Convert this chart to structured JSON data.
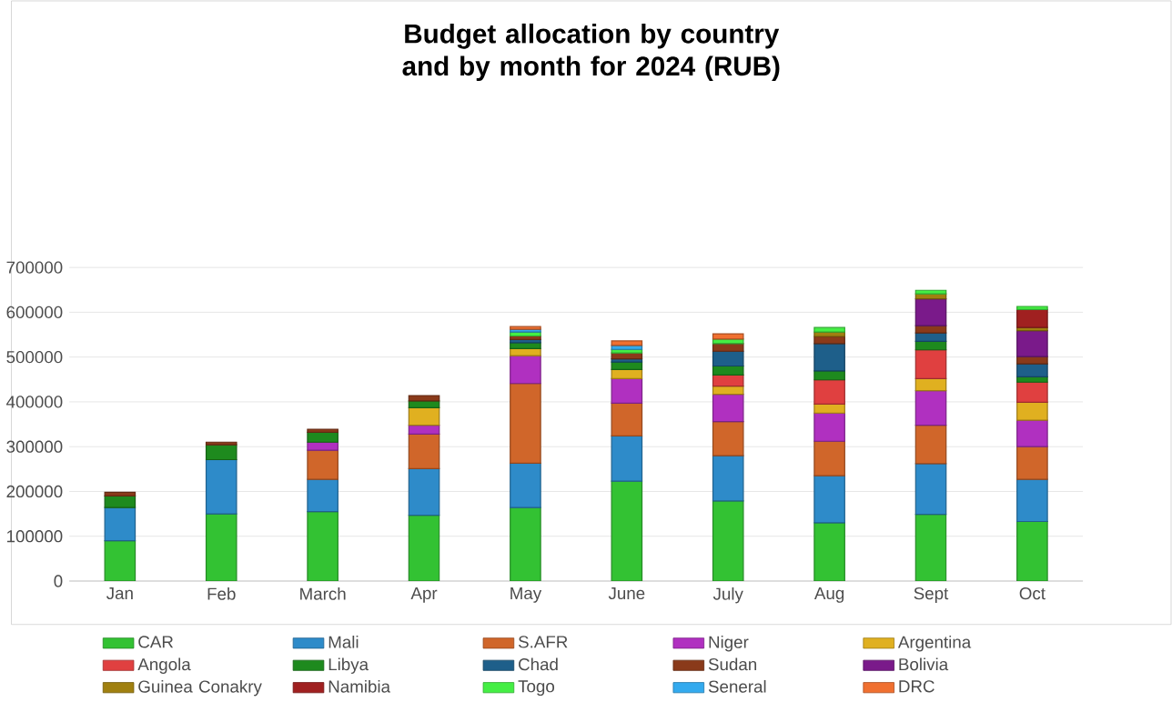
{
  "chart_data": {
    "type": "bar",
    "stacked": true,
    "title": "Budget allocation by country and by month for 2024 (RUB)",
    "categories": [
      "Jan",
      "Feb",
      "March",
      "Apr",
      "May",
      "June",
      "July",
      "Aug",
      "Sept",
      "Oct"
    ],
    "ylim": [
      0,
      700000
    ],
    "yticks": [
      0,
      100000,
      200000,
      300000,
      400000,
      500000,
      600000,
      700000
    ],
    "grid": "y",
    "legend": "bottom",
    "series": [
      {
        "name": "CAR",
        "color": "#33c233",
        "values": [
          90000,
          150000,
          155000,
          147000,
          164000,
          223000,
          179000,
          130000,
          149000,
          133000
        ]
      },
      {
        "name": "Mali",
        "color": "#2e8bc9",
        "values": [
          74000,
          121000,
          72000,
          104000,
          99000,
          101000,
          101000,
          105000,
          113000,
          94000
        ]
      },
      {
        "name": "S.AFR",
        "color": "#d0662a",
        "values": [
          null,
          null,
          65000,
          77000,
          178000,
          73000,
          76000,
          77000,
          86000,
          73000
        ]
      },
      {
        "name": "Niger",
        "color": "#b030c0",
        "values": [
          null,
          null,
          18000,
          20000,
          62000,
          55000,
          61000,
          63000,
          77000,
          59000
        ]
      },
      {
        "name": "Argentina",
        "color": "#e0b020",
        "values": [
          null,
          null,
          null,
          39000,
          16000,
          20000,
          18000,
          20000,
          27000,
          40000
        ]
      },
      {
        "name": "Angola",
        "color": "#e04040",
        "values": [
          null,
          null,
          null,
          null,
          null,
          null,
          25000,
          54000,
          64000,
          45000
        ]
      },
      {
        "name": "Libya",
        "color": "#1e8a1e",
        "values": [
          26000,
          33000,
          22000,
          15000,
          13000,
          17000,
          20000,
          20000,
          19000,
          12000
        ]
      },
      {
        "name": "Chad",
        "color": "#1e5f8a",
        "values": [
          null,
          null,
          null,
          null,
          7000,
          7000,
          33000,
          61000,
          19000,
          29000
        ]
      },
      {
        "name": "Sudan",
        "color": "#8a3a1a",
        "values": [
          8000,
          6000,
          7000,
          12000,
          8000,
          13000,
          17000,
          16000,
          16000,
          16000
        ]
      },
      {
        "name": "Bolivia",
        "color": "#7a1a8a",
        "values": [
          null,
          null,
          null,
          null,
          null,
          null,
          null,
          null,
          60000,
          58000
        ]
      },
      {
        "name": "Guinea Conakry",
        "color": "#a08010",
        "values": [
          null,
          null,
          null,
          null,
          null,
          null,
          null,
          10000,
          11000,
          7000
        ]
      },
      {
        "name": "Namibia",
        "color": "#a02020",
        "values": [
          null,
          null,
          null,
          null,
          null,
          null,
          null,
          null,
          null,
          40000
        ]
      },
      {
        "name": "Togo",
        "color": "#44ee44",
        "values": [
          null,
          null,
          null,
          null,
          9000,
          8000,
          10000,
          10000,
          8000,
          7000
        ]
      },
      {
        "name": "Seneral",
        "color": "#33aaee",
        "values": [
          null,
          null,
          null,
          null,
          6000,
          9000,
          null,
          null,
          null,
          null
        ]
      },
      {
        "name": "DRC",
        "color": "#f07030",
        "values": [
          null,
          null,
          null,
          null,
          6000,
          10000,
          12000,
          null,
          null,
          null
        ]
      }
    ]
  }
}
